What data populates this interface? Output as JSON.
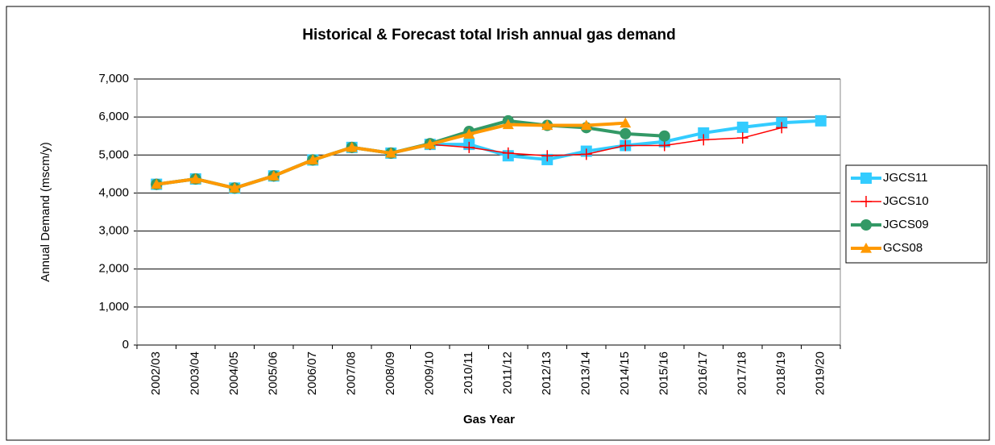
{
  "chart_data": {
    "type": "line",
    "title": "Historical & Forecast total Irish annual gas demand",
    "x_label": "Gas Year",
    "y_label": "Annual Demand (mscm/y)",
    "categories": [
      "2002/03",
      "2003/04",
      "2004/05",
      "2005/06",
      "2006/07",
      "2007/08",
      "2008/09",
      "2009/10",
      "2010/11",
      "2011/12",
      "2012/13",
      "2013/14",
      "2014/15",
      "2015/16",
      "2016/17",
      "2017/18",
      "2018/19",
      "2019/20"
    ],
    "ylim": [
      0,
      7000
    ],
    "yticks": [
      0,
      {
        "value": 1000,
        "label": "1,000"
      },
      {
        "value": 2000,
        "label": "2,000"
      },
      {
        "value": 3000,
        "label": "3,000"
      },
      {
        "value": 4000,
        "label": "4,000"
      },
      {
        "value": 5000,
        "label": "5,000"
      },
      {
        "value": 6000,
        "label": "6,000"
      },
      {
        "value": 7000,
        "label": "7,000"
      }
    ],
    "grid": true,
    "legend": "right",
    "series": [
      {
        "name": "JGCS11",
        "color": "#33ccff",
        "marker": "square",
        "values": [
          4230,
          4370,
          4130,
          4450,
          4870,
          5200,
          5050,
          5280,
          5280,
          4980,
          4880,
          5100,
          5250,
          5350,
          5580,
          5730,
          5850,
          5900
        ]
      },
      {
        "name": "JGCS10",
        "color": "#ff0000",
        "marker": "plus",
        "values": [
          4230,
          4370,
          4130,
          4450,
          4870,
          5200,
          5050,
          5280,
          5200,
          5050,
          4980,
          5020,
          5250,
          5250,
          5400,
          5450,
          5720,
          null
        ]
      },
      {
        "name": "JGCS09",
        "color": "#339966",
        "marker": "circle",
        "values": [
          4230,
          4370,
          4130,
          4450,
          4870,
          5200,
          5050,
          5300,
          5620,
          5900,
          5780,
          5720,
          5560,
          5500,
          null,
          null,
          null,
          null
        ]
      },
      {
        "name": "GCS08",
        "color": "#ff9900",
        "marker": "triangle",
        "values": [
          4230,
          4370,
          4130,
          4450,
          4870,
          5200,
          5050,
          5280,
          5550,
          5800,
          5780,
          5780,
          5840,
          null,
          null,
          null,
          null,
          null
        ]
      }
    ]
  }
}
